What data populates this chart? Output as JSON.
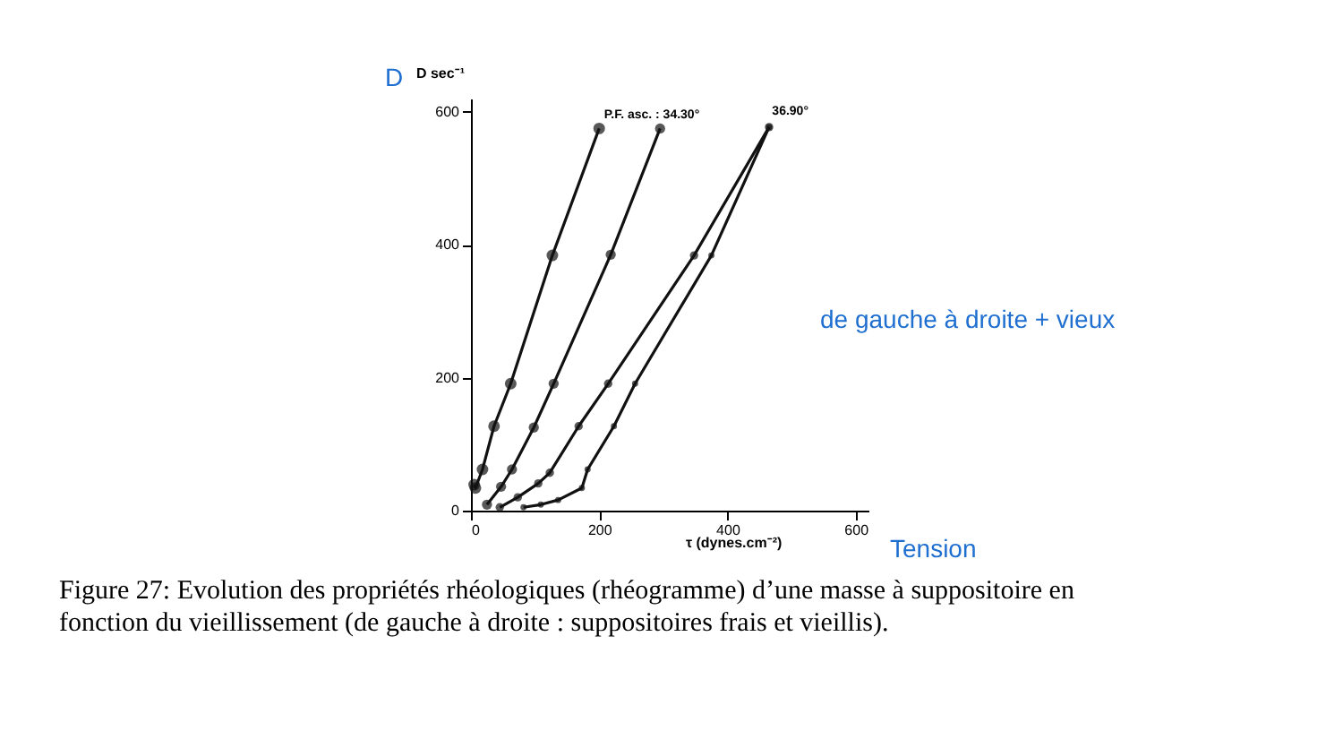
{
  "chart_data": {
    "type": "line",
    "xlabel": "τ (dynes.cm⁻²)",
    "ylabel": "D sec⁻¹",
    "xlim": [
      0,
      620
    ],
    "ylim": [
      0,
      620
    ],
    "xticks": [
      0,
      200,
      400,
      600
    ],
    "yticks": [
      0,
      200,
      400,
      600
    ],
    "marker": "circle",
    "line_style": "solid",
    "grid": false,
    "series": [
      {
        "color": "#111111",
        "x": [
          5,
          7,
          18,
          36,
          62,
          127,
          200
        ],
        "values": [
          39,
          34,
          62,
          127,
          191,
          384,
          575
        ]
      },
      {
        "color": "#111111",
        "x": [
          25,
          47,
          64,
          98,
          129,
          218,
          295
        ],
        "values": [
          9,
          36,
          62,
          125,
          191,
          385,
          575
        ]
      },
      {
        "color": "#111111",
        "x": [
          45,
          73,
          105,
          123,
          168,
          214,
          348,
          465
        ],
        "values": [
          5,
          20,
          41,
          57,
          127,
          191,
          384,
          577
        ]
      },
      {
        "color": "#111111",
        "x": [
          82,
          109,
          136,
          173,
          182,
          223,
          256,
          375,
          465
        ],
        "values": [
          5,
          9,
          16,
          34,
          62,
          127,
          191,
          384,
          577
        ]
      }
    ],
    "annotations": [
      {
        "text": "P.F. asc. : 34.30°",
        "x": 295,
        "y": 580
      },
      {
        "text": "36.90°",
        "x": 465,
        "y": 585
      },
      "de gauche à droite + vieux",
      "Tension",
      "D",
      "Figure 27: Evolution des propriétés rhéologiques (rhéogramme) d’une masse à suppositoire en fonction du vieillissement (de gauche à droite : suppositoires frais et vieillis)."
    ]
  }
}
